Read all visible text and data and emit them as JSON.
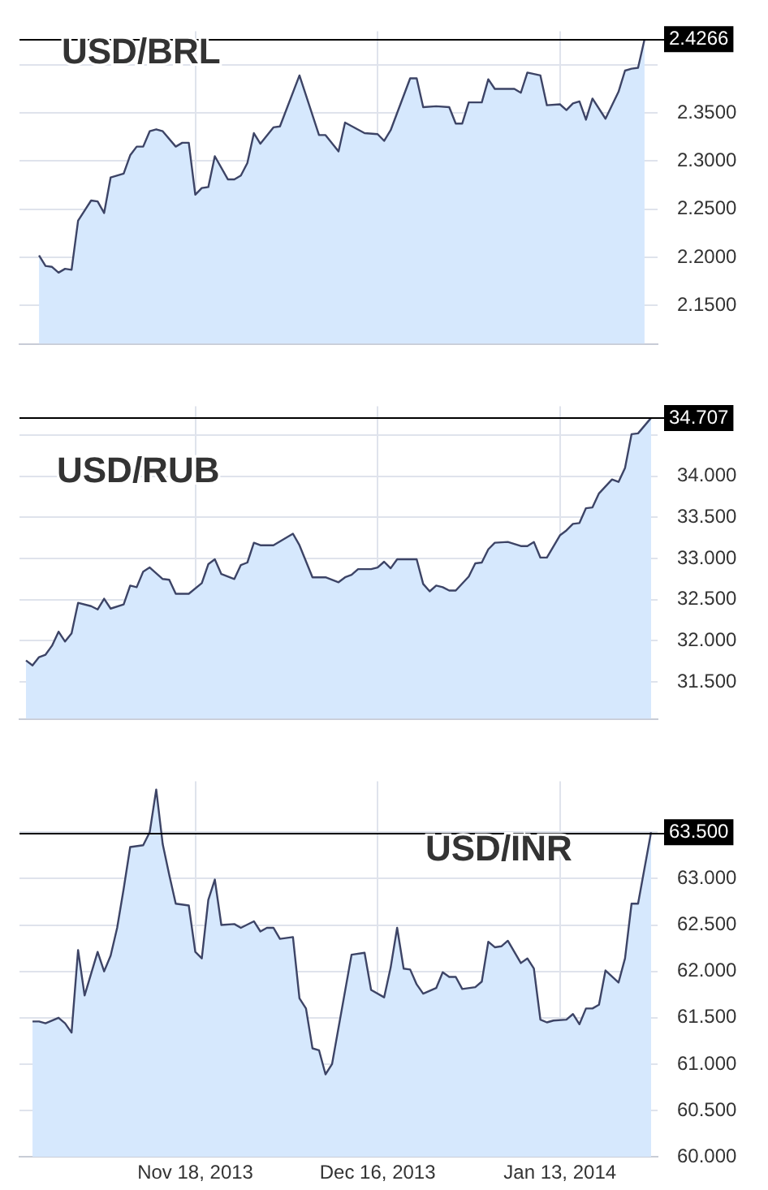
{
  "chart_data": [
    {
      "type": "area",
      "title": "USD/BRL",
      "color": "#3d4466",
      "grid": true,
      "tick_labels": "y",
      "x": [
        "2013-10-25",
        "2013-10-26",
        "2013-10-27",
        "2013-10-28",
        "2013-10-29",
        "2013-10-30",
        "2013-10-31",
        "2013-11-02",
        "2013-11-03",
        "2013-11-04",
        "2013-11-05",
        "2013-11-07",
        "2013-11-08",
        "2013-11-09",
        "2013-11-10",
        "2013-11-11",
        "2013-11-12",
        "2013-11-13",
        "2013-11-15",
        "2013-11-16",
        "2013-11-17",
        "2013-11-18",
        "2013-11-19",
        "2013-11-20",
        "2013-11-21",
        "2013-11-23",
        "2013-11-24",
        "2013-11-25",
        "2013-11-26",
        "2013-11-27",
        "2013-11-28",
        "2013-11-30",
        "2013-12-01",
        "2013-12-04",
        "2013-12-07",
        "2013-12-08",
        "2013-12-10",
        "2013-12-11",
        "2013-12-14",
        "2013-12-16",
        "2013-12-17",
        "2013-12-18",
        "2013-12-21",
        "2013-12-22",
        "2013-12-23",
        "2013-12-25",
        "2013-12-27",
        "2013-12-28",
        "2013-12-29",
        "2013-12-30",
        "2014-01-01",
        "2014-01-02",
        "2014-01-03",
        "2014-01-06",
        "2014-01-07",
        "2014-01-08",
        "2014-01-10",
        "2014-01-11",
        "2014-01-13",
        "2014-01-14",
        "2014-01-15",
        "2014-01-16",
        "2014-01-17",
        "2014-01-18",
        "2014-01-20",
        "2014-01-22",
        "2014-01-23",
        "2014-01-24",
        "2014-01-25",
        "2014-01-26"
      ],
      "values": [
        2.202,
        2.191,
        2.19,
        2.184,
        2.188,
        2.187,
        2.238,
        2.259,
        2.258,
        2.246,
        2.283,
        2.287,
        2.306,
        2.315,
        2.315,
        2.331,
        2.333,
        2.331,
        2.315,
        2.319,
        2.319,
        2.265,
        2.272,
        2.273,
        2.305,
        2.281,
        2.281,
        2.285,
        2.298,
        2.329,
        2.318,
        2.335,
        2.336,
        2.389,
        2.327,
        2.327,
        2.31,
        2.34,
        2.329,
        2.328,
        2.321,
        2.332,
        2.386,
        2.386,
        2.356,
        2.357,
        2.356,
        2.339,
        2.339,
        2.361,
        2.361,
        2.385,
        2.375,
        2.375,
        2.371,
        2.392,
        2.389,
        2.358,
        2.359,
        2.353,
        2.36,
        2.362,
        2.343,
        2.365,
        2.344,
        2.372,
        2.394,
        2.396,
        2.397,
        2.4266
      ],
      "xlim": [
        "2013-10-22",
        "2014-01-28"
      ],
      "xticks": [
        {
          "value": "2013-11-18",
          "label": null
        },
        {
          "value": "2013-12-16",
          "label": null
        },
        {
          "value": "2014-01-13",
          "label": null
        }
      ],
      "ylim": [
        2.11,
        2.435
      ],
      "yticks": [
        {
          "value": 2.15,
          "label": "2.1500"
        },
        {
          "value": 2.2,
          "label": "2.2000"
        },
        {
          "value": 2.25,
          "label": "2.2500"
        },
        {
          "value": 2.3,
          "label": "2.3000"
        },
        {
          "value": 2.35,
          "label": "2.3500"
        },
        {
          "value": 2.4,
          "label": null
        }
      ],
      "ref_lines": [
        {
          "axis": "y",
          "value": 2.4266,
          "label": "2.4266"
        }
      ]
    },
    {
      "type": "area",
      "title": "USD/RUB",
      "color": "#3d4466",
      "grid": true,
      "tick_labels": "y",
      "x": [
        "2013-10-23",
        "2013-10-24",
        "2013-10-25",
        "2013-10-26",
        "2013-10-27",
        "2013-10-28",
        "2013-10-29",
        "2013-10-30",
        "2013-10-31",
        "2013-11-02",
        "2013-11-03",
        "2013-11-04",
        "2013-11-05",
        "2013-11-07",
        "2013-11-08",
        "2013-11-09",
        "2013-11-10",
        "2013-11-11",
        "2013-11-13",
        "2013-11-14",
        "2013-11-15",
        "2013-11-17",
        "2013-11-19",
        "2013-11-20",
        "2013-11-21",
        "2013-11-22",
        "2013-11-24",
        "2013-11-25",
        "2013-11-26",
        "2013-11-27",
        "2013-11-28",
        "2013-11-30",
        "2013-12-03",
        "2013-12-04",
        "2013-12-06",
        "2013-12-08",
        "2013-12-10",
        "2013-12-11",
        "2013-12-12",
        "2013-12-13",
        "2013-12-15",
        "2013-12-16",
        "2013-12-17",
        "2013-12-18",
        "2013-12-19",
        "2013-12-22",
        "2013-12-23",
        "2013-12-24",
        "2013-12-25",
        "2013-12-26",
        "2013-12-27",
        "2013-12-28",
        "2013-12-30",
        "2013-12-31",
        "2014-01-01",
        "2014-01-02",
        "2014-01-03",
        "2014-01-05",
        "2014-01-07",
        "2014-01-08",
        "2014-01-09",
        "2014-01-10",
        "2014-01-11",
        "2014-01-13",
        "2014-01-14",
        "2014-01-15",
        "2014-01-16",
        "2014-01-17",
        "2014-01-18",
        "2014-01-19",
        "2014-01-21",
        "2014-01-22",
        "2014-01-23",
        "2014-01-24",
        "2014-01-25",
        "2014-01-27"
      ],
      "values": [
        31.76,
        31.7,
        31.8,
        31.83,
        31.94,
        32.11,
        31.99,
        32.09,
        32.46,
        32.42,
        32.38,
        32.51,
        32.39,
        32.44,
        32.67,
        32.65,
        32.84,
        32.89,
        32.75,
        32.74,
        32.57,
        32.57,
        32.7,
        32.93,
        32.99,
        32.81,
        32.75,
        32.92,
        32.95,
        33.19,
        33.16,
        33.16,
        33.3,
        33.16,
        32.77,
        32.77,
        32.71,
        32.77,
        32.8,
        32.87,
        32.87,
        32.89,
        32.96,
        32.88,
        32.99,
        32.99,
        32.69,
        32.6,
        32.67,
        32.65,
        32.61,
        32.61,
        32.78,
        32.94,
        32.95,
        33.11,
        33.19,
        33.2,
        33.15,
        33.15,
        33.2,
        33.01,
        33.01,
        33.28,
        33.34,
        33.42,
        33.43,
        33.61,
        33.62,
        33.79,
        33.96,
        33.93,
        34.1,
        34.51,
        34.52,
        34.707
      ],
      "xlim": [
        "2013-10-22",
        "2014-01-28"
      ],
      "xticks": [
        {
          "value": "2013-11-18",
          "label": null
        },
        {
          "value": "2013-12-16",
          "label": null
        },
        {
          "value": "2014-01-13",
          "label": null
        }
      ],
      "ylim": [
        31.05,
        34.85
      ],
      "yticks": [
        {
          "value": 31.5,
          "label": "31.500"
        },
        {
          "value": 32,
          "label": "32.000"
        },
        {
          "value": 32.5,
          "label": "32.500"
        },
        {
          "value": 33,
          "label": "33.000"
        },
        {
          "value": 33.5,
          "label": "33.500"
        },
        {
          "value": 34,
          "label": "34.000"
        },
        {
          "value": 34.5,
          "label": null
        }
      ],
      "ref_lines": [
        {
          "axis": "y",
          "value": 34.707,
          "label": "34.707"
        }
      ]
    },
    {
      "type": "area",
      "title": "USD/INR",
      "color": "#3d4466",
      "grid": true,
      "x": [
        "2013-10-24",
        "2013-10-25",
        "2013-10-26",
        "2013-10-28",
        "2013-10-29",
        "2013-10-30",
        "2013-10-31",
        "2013-11-01",
        "2013-11-03",
        "2013-11-04",
        "2013-11-05",
        "2013-11-06",
        "2013-11-07",
        "2013-11-08",
        "2013-11-10",
        "2013-11-11",
        "2013-11-12",
        "2013-11-13",
        "2013-11-14",
        "2013-11-15",
        "2013-11-17",
        "2013-11-18",
        "2013-11-19",
        "2013-11-20",
        "2013-11-21",
        "2013-11-22",
        "2013-11-24",
        "2013-11-25",
        "2013-11-27",
        "2013-11-28",
        "2013-11-29",
        "2013-11-30",
        "2013-12-01",
        "2013-12-03",
        "2013-12-04",
        "2013-12-05",
        "2013-12-06",
        "2013-12-07",
        "2013-12-08",
        "2013-12-09",
        "2013-12-12",
        "2013-12-14",
        "2013-12-15",
        "2013-12-17",
        "2013-12-18",
        "2013-12-19",
        "2013-12-20",
        "2013-12-21",
        "2013-12-22",
        "2013-12-23",
        "2013-12-25",
        "2013-12-26",
        "2013-12-27",
        "2013-12-28",
        "2013-12-29",
        "2013-12-31",
        "2014-01-01",
        "2014-01-02",
        "2014-01-03",
        "2014-01-04",
        "2014-01-05",
        "2014-01-07",
        "2014-01-08",
        "2014-01-09",
        "2014-01-10",
        "2014-01-11",
        "2014-01-12",
        "2014-01-14",
        "2014-01-15",
        "2014-01-16",
        "2014-01-17",
        "2014-01-18",
        "2014-01-19",
        "2014-01-20",
        "2014-01-22",
        "2014-01-23",
        "2014-01-24",
        "2014-01-25",
        "2014-01-27"
      ],
      "values": [
        61.46,
        61.46,
        61.44,
        61.5,
        61.44,
        61.34,
        62.23,
        61.74,
        62.21,
        62,
        62.17,
        62.47,
        62.89,
        63.34,
        63.36,
        63.5,
        63.96,
        63.37,
        63.04,
        62.73,
        62.71,
        62.21,
        62.14,
        62.77,
        62.99,
        62.5,
        62.51,
        62.47,
        62.54,
        62.43,
        62.47,
        62.47,
        62.35,
        62.37,
        61.71,
        61.6,
        61.17,
        61.15,
        60.89,
        61,
        62.18,
        62.2,
        61.8,
        61.72,
        62.04,
        62.47,
        62.03,
        62.02,
        61.86,
        61.76,
        61.82,
        61.99,
        61.94,
        61.94,
        61.81,
        61.83,
        61.89,
        62.32,
        62.26,
        62.27,
        62.33,
        62.09,
        62.14,
        62.03,
        61.48,
        61.45,
        61.47,
        61.48,
        61.54,
        61.43,
        61.6,
        61.6,
        61.64,
        62.01,
        61.88,
        62.14,
        62.73,
        62.73,
        63.5
      ],
      "xlim": [
        "2013-10-22",
        "2014-01-28"
      ],
      "xticks": [
        {
          "value": "2013-11-18",
          "label": "Nov 18, 2013"
        },
        {
          "value": "2013-12-16",
          "label": "Dec 16, 2013"
        },
        {
          "value": "2014-01-13",
          "label": "Jan 13, 2014"
        }
      ],
      "ylim": [
        60,
        64.05
      ],
      "yticks": [
        {
          "value": 60,
          "label": "60.000"
        },
        {
          "value": 60.5,
          "label": "60.500"
        },
        {
          "value": 61,
          "label": "61.000"
        },
        {
          "value": 61.5,
          "label": "61.500"
        },
        {
          "value": 62,
          "label": "62.000"
        },
        {
          "value": 62.5,
          "label": "62.500"
        },
        {
          "value": 63,
          "label": "63.000"
        },
        {
          "value": 63.5,
          "label": null
        }
      ],
      "ref_lines": [
        {
          "axis": "y",
          "value": 63.5,
          "label": "63.500"
        }
      ]
    }
  ]
}
